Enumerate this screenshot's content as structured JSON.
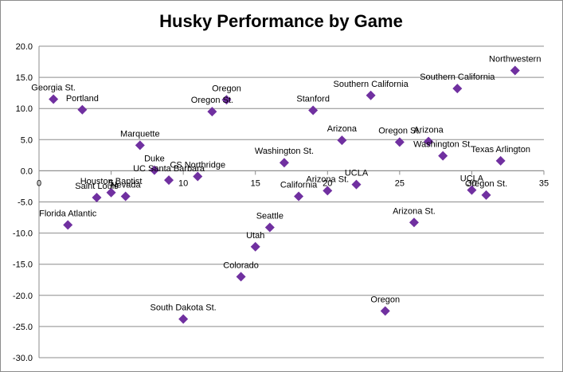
{
  "chart_data": {
    "type": "scatter",
    "title": "Husky Performance by Game",
    "xlabel": "",
    "ylabel": "",
    "xlim": [
      0,
      35
    ],
    "ylim": [
      -30,
      20
    ],
    "x_ticks": [
      "0",
      "5",
      "10",
      "15",
      "20",
      "25",
      "30",
      "35"
    ],
    "y_ticks": [
      "20.0",
      "15.0",
      "10.0",
      "5.0",
      "0.0",
      "-5.0",
      "-10.0",
      "-15.0",
      "-20.0",
      "-25.0",
      "-30.0"
    ],
    "grid": true,
    "legend": "none",
    "marker_color": "#7030A0",
    "points": [
      {
        "x": 1,
        "y": 11.5,
        "label": "Georgia St."
      },
      {
        "x": 2,
        "y": -8.7,
        "label": "Florida Atlantic"
      },
      {
        "x": 3,
        "y": 9.8,
        "label": "Portland"
      },
      {
        "x": 4,
        "y": -4.3,
        "label": "Saint Louis"
      },
      {
        "x": 5,
        "y": -3.5,
        "label": "Houston Baptist"
      },
      {
        "x": 6,
        "y": -4.1,
        "label": "Nevada"
      },
      {
        "x": 7,
        "y": 4.1,
        "label": "Marquette"
      },
      {
        "x": 8,
        "y": 0.1,
        "label": "Duke"
      },
      {
        "x": 9,
        "y": -1.5,
        "label": "UC Santa Barbara"
      },
      {
        "x": 10,
        "y": -23.8,
        "label": "South Dakota St."
      },
      {
        "x": 11,
        "y": -0.9,
        "label": "CS Northridge"
      },
      {
        "x": 12,
        "y": 9.5,
        "label": "Oregon St."
      },
      {
        "x": 13,
        "y": 11.4,
        "label": "Oregon"
      },
      {
        "x": 14,
        "y": -17.0,
        "label": "Colorado"
      },
      {
        "x": 15,
        "y": -12.2,
        "label": "Utah"
      },
      {
        "x": 16,
        "y": -9.1,
        "label": "Seattle"
      },
      {
        "x": 17,
        "y": 1.3,
        "label": "Washington St."
      },
      {
        "x": 18,
        "y": -4.1,
        "label": "California"
      },
      {
        "x": 19,
        "y": 9.7,
        "label": "Stanford"
      },
      {
        "x": 20,
        "y": -3.2,
        "label": "Arizona St."
      },
      {
        "x": 21,
        "y": 4.9,
        "label": "Arizona"
      },
      {
        "x": 22,
        "y": -2.2,
        "label": "UCLA"
      },
      {
        "x": 23,
        "y": 12.1,
        "label": "Southern California"
      },
      {
        "x": 24,
        "y": -22.5,
        "label": "Oregon"
      },
      {
        "x": 25,
        "y": 4.6,
        "label": "Oregon St."
      },
      {
        "x": 26,
        "y": -8.3,
        "label": "Arizona St."
      },
      {
        "x": 27,
        "y": 4.7,
        "label": "Arizona"
      },
      {
        "x": 28,
        "y": 2.4,
        "label": "Washington St."
      },
      {
        "x": 29,
        "y": 13.2,
        "label": "Southern California"
      },
      {
        "x": 30,
        "y": -3.1,
        "label": "UCLA"
      },
      {
        "x": 31,
        "y": -3.9,
        "label": "Oregon St."
      },
      {
        "x": 32,
        "y": 1.6,
        "label": "Texas Arlington"
      },
      {
        "x": 33,
        "y": 16.1,
        "label": "Northwestern"
      }
    ]
  }
}
